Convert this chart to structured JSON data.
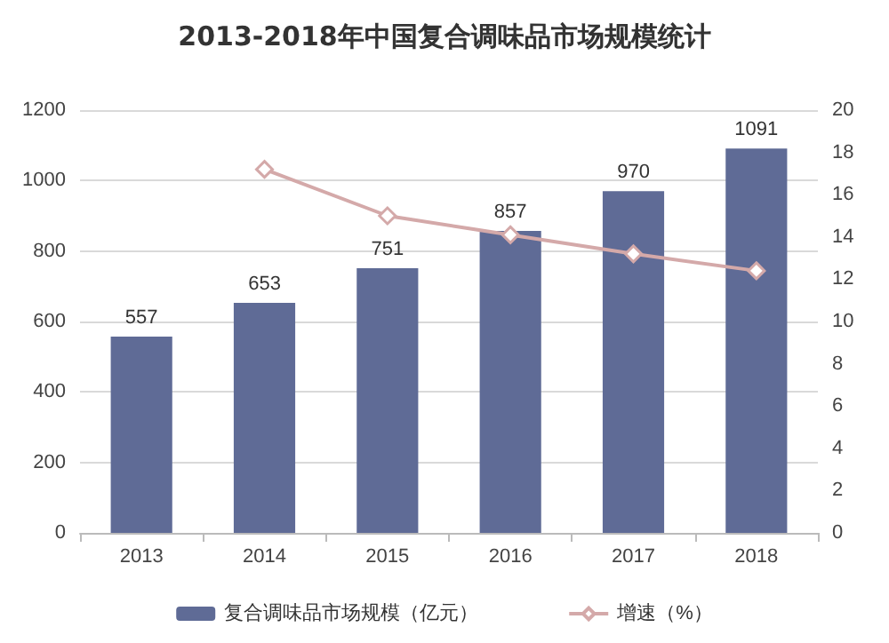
{
  "chart_data": {
    "type": "bar",
    "title": "2013-2018年中国复合调味品市场规模统计",
    "categories": [
      "2013",
      "2014",
      "2015",
      "2016",
      "2017",
      "2018"
    ],
    "series": [
      {
        "name": "复合调味品市场规模（亿元）",
        "color": "#5f6b96",
        "values": [
          557,
          653,
          751,
          857,
          970,
          1091
        ],
        "value_labels": [
          "557",
          "653",
          "751",
          "857",
          "970",
          "1091"
        ]
      },
      {
        "name": "增速（%）",
        "type": "line",
        "axis": "y2",
        "color": "#d4a9a9",
        "marker": "diamond",
        "values": [
          null,
          17.2,
          15.0,
          14.1,
          13.2,
          12.4
        ]
      }
    ],
    "ylim": [
      0,
      1200
    ],
    "yticks": [
      0,
      200,
      400,
      600,
      800,
      1000,
      1200
    ],
    "y2lim": [
      0,
      20
    ],
    "y2ticks": [
      0,
      2,
      4,
      6,
      8,
      10,
      12,
      14,
      16,
      18,
      20
    ],
    "grid": "y",
    "legend": "bottom"
  }
}
